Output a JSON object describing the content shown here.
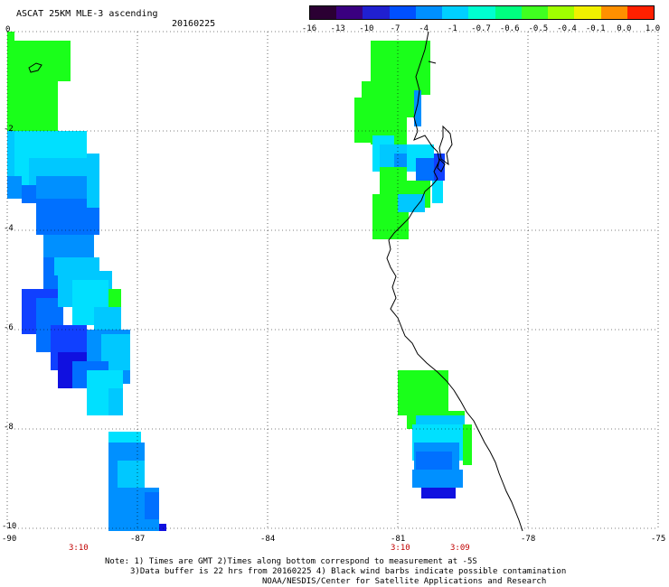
{
  "header": {
    "title": "ASCAT 25KM MLE-3 ascending",
    "date": "20160225"
  },
  "colorbar": {
    "ticks": [
      "-16",
      "-13",
      "-10",
      "-7",
      "-4",
      "-1",
      "-0.7",
      "-0.6",
      "-0.5",
      "-0.4",
      "-0.1",
      "0.0",
      "1.0"
    ],
    "colors": [
      "#2b0033",
      "#3a0080",
      "#2020d0",
      "#0050ff",
      "#0090ff",
      "#00d0ff",
      "#00ffd0",
      "#00ff80",
      "#40ff20",
      "#a0ff00",
      "#f0f000",
      "#ff9000",
      "#ff2000"
    ]
  },
  "axes": {
    "lat_labels": [
      "0",
      "-2",
      "-4",
      "-6",
      "-8",
      "-10"
    ],
    "lon_labels": [
      "-90",
      "-87",
      "-84",
      "-81",
      "-78",
      "-75"
    ]
  },
  "times": [
    "3:10",
    "3:10",
    "3:09"
  ],
  "notes": [
    "Note: 1) Times are GMT 2)Times along bottom correspond to measurement at -5S",
    "3)Data buffer is 22 hrs from 20160225 4) Black wind barbs indicate possible contamination",
    "NOAA/NESDIS/Center for Satellite Applications and Research"
  ]
}
